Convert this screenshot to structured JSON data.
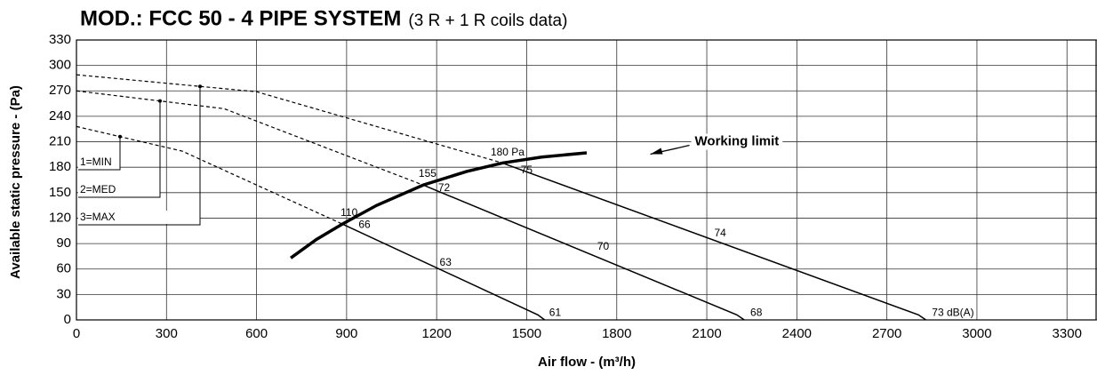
{
  "chart_data": {
    "type": "line",
    "title": "MOD.: FCC 50 - 4 PIPE SYSTEM",
    "subtitle": "(3 R + 1 R coils data)",
    "x_label": "Air flow - (m³/h)",
    "y_label": "Available static pressure - (Pa)",
    "xlim": [
      0,
      3400
    ],
    "ylim": [
      0,
      330
    ],
    "xticks": [
      0,
      300,
      600,
      900,
      1200,
      1500,
      1800,
      2100,
      2400,
      2700,
      3000,
      3300
    ],
    "yticks": [
      0,
      30,
      60,
      90,
      120,
      150,
      180,
      210,
      240,
      270,
      300,
      330
    ],
    "grid": true,
    "color": "#000000",
    "series": [
      {
        "name": "1=MIN",
        "style": "dashed",
        "x": [
          0,
          352,
          886
        ],
        "values": [
          228,
          199,
          113
        ]
      },
      {
        "name": "2=MED",
        "style": "dashed",
        "x": [
          0,
          492,
          1155
        ],
        "values": [
          270,
          249,
          159
        ]
      },
      {
        "name": "3=MAX",
        "style": "dashed",
        "x": [
          0,
          600,
          1419
        ],
        "values": [
          289,
          269,
          185
        ]
      },
      {
        "style": "solid",
        "x": [
          886,
          1537,
          1560
        ],
        "values": [
          113,
          6,
          0
        ]
      },
      {
        "style": "solid",
        "x": [
          1155,
          2200,
          2225
        ],
        "values": [
          159,
          6,
          0
        ]
      },
      {
        "style": "solid",
        "x": [
          1419,
          2805,
          2830
        ],
        "values": [
          185,
          6,
          0
        ]
      },
      {
        "style": "limit",
        "x": [
          714,
          800,
          886,
          1000,
          1155,
          1300,
          1419,
          1550,
          1700
        ],
        "values": [
          73,
          95,
          113,
          135,
          159,
          175,
          185,
          192,
          197
        ]
      }
    ],
    "annotations": [
      {
        "text": "110",
        "x": 880,
        "y": 126
      },
      {
        "text": "66",
        "x": 940,
        "y": 112
      },
      {
        "text": "63",
        "x": 1210,
        "y": 67
      },
      {
        "text": "61",
        "x": 1575,
        "y": 8
      },
      {
        "text": "155",
        "x": 1140,
        "y": 172
      },
      {
        "text": "72",
        "x": 1205,
        "y": 155
      },
      {
        "text": "70",
        "x": 1735,
        "y": 86
      },
      {
        "text": "68",
        "x": 2245,
        "y": 8
      },
      {
        "text": "180 Pa",
        "x": 1380,
        "y": 197
      },
      {
        "text": "75",
        "x": 1480,
        "y": 176
      },
      {
        "text": "74",
        "x": 2125,
        "y": 102
      },
      {
        "text": "73 dB(A)",
        "x": 2850,
        "y": 8
      }
    ],
    "limit_label": {
      "text": "Working limit",
      "x": 2060,
      "y": 210
    }
  }
}
